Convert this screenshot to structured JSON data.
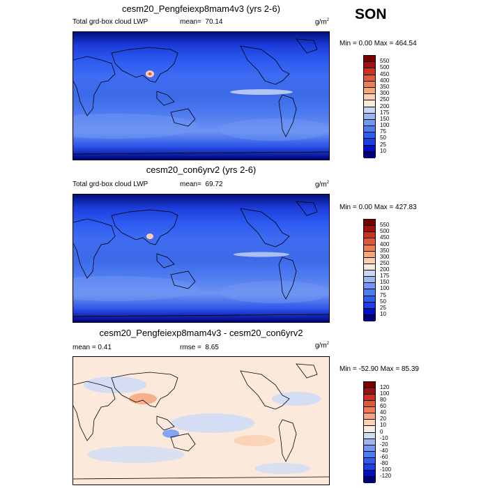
{
  "season": "SON",
  "panels": [
    {
      "title": "cesm20_Pengfeiexp8mam4v3 (yrs 2-6)",
      "left_label": "Total grd-box cloud LWP",
      "stat_label": "mean=",
      "stat_value": "70.14",
      "units": "g/m",
      "units_sup": "2",
      "minmax": "Min =   0.00 Max = 464.54"
    },
    {
      "title": "cesm20_con6yrv2 (yrs 2-6)",
      "left_label": "Total grd-box cloud LWP",
      "stat_label": "mean=",
      "stat_value": "69.72",
      "units": "g/m",
      "units_sup": "2",
      "minmax": "Min =   0.00 Max = 427.83"
    },
    {
      "title": "cesm20_Pengfeiexp8mam4v3 - cesm20_con6yrv2",
      "left_label": "mean =   0.41",
      "stat_label": "rmse =",
      "stat_value": "8.65",
      "units": "g/m",
      "units_sup": "2",
      "minmax": "Min = -52.90 Max =  85.39"
    }
  ],
  "chart_data": [
    {
      "type": "heatmap",
      "title": "cesm20_Pengfeiexp8mam4v3 (yrs 2-6)",
      "variable": "Total grd-box cloud LWP",
      "units": "g/m2",
      "mean": 70.14,
      "min": 0.0,
      "max": 464.54,
      "colorbar_levels": [
        10,
        25,
        50,
        75,
        100,
        150,
        175,
        200,
        250,
        300,
        350,
        400,
        450,
        500,
        550
      ],
      "colorbar_colors": [
        "#00007a",
        "#0010c8",
        "#1e3fe6",
        "#2b5ef0",
        "#4a7ef4",
        "#7098f4",
        "#9cb6f2",
        "#c8d6f4",
        "#f7e9dc",
        "#fbcfb0",
        "#f7a67c",
        "#ee7d54",
        "#e0583a",
        "#c8321f",
        "#a01010",
        "#7a0000"
      ]
    },
    {
      "type": "heatmap",
      "title": "cesm20_con6yrv2 (yrs 2-6)",
      "variable": "Total grd-box cloud LWP",
      "units": "g/m2",
      "mean": 69.72,
      "min": 0.0,
      "max": 427.83,
      "colorbar_levels": [
        10,
        25,
        50,
        75,
        100,
        150,
        175,
        200,
        250,
        300,
        350,
        400,
        450,
        500,
        550
      ],
      "colorbar_colors": [
        "#00007a",
        "#0010c8",
        "#1e3fe6",
        "#2b5ef0",
        "#4a7ef4",
        "#7098f4",
        "#9cb6f2",
        "#c8d6f4",
        "#f7e9dc",
        "#fbcfb0",
        "#f7a67c",
        "#ee7d54",
        "#e0583a",
        "#c8321f",
        "#a01010",
        "#7a0000"
      ]
    },
    {
      "type": "heatmap",
      "title": "cesm20_Pengfeiexp8mam4v3 - cesm20_con6yrv2",
      "units": "g/m2",
      "mean": 0.41,
      "rmse": 8.65,
      "min": -52.9,
      "max": 85.39,
      "colorbar_levels": [
        -120,
        -100,
        -80,
        -60,
        -40,
        -20,
        -10,
        0,
        10,
        20,
        40,
        60,
        80,
        100,
        120
      ],
      "colorbar_colors": [
        "#00007a",
        "#0010c8",
        "#1e3fe6",
        "#2b5ef0",
        "#4a7ef4",
        "#7098f4",
        "#9cb6f2",
        "#cfdcf6",
        "#f9ebe0",
        "#fbd2b4",
        "#f7a67c",
        "#ee7d54",
        "#e0583a",
        "#c8321f",
        "#a01010",
        "#7a0000"
      ]
    }
  ]
}
